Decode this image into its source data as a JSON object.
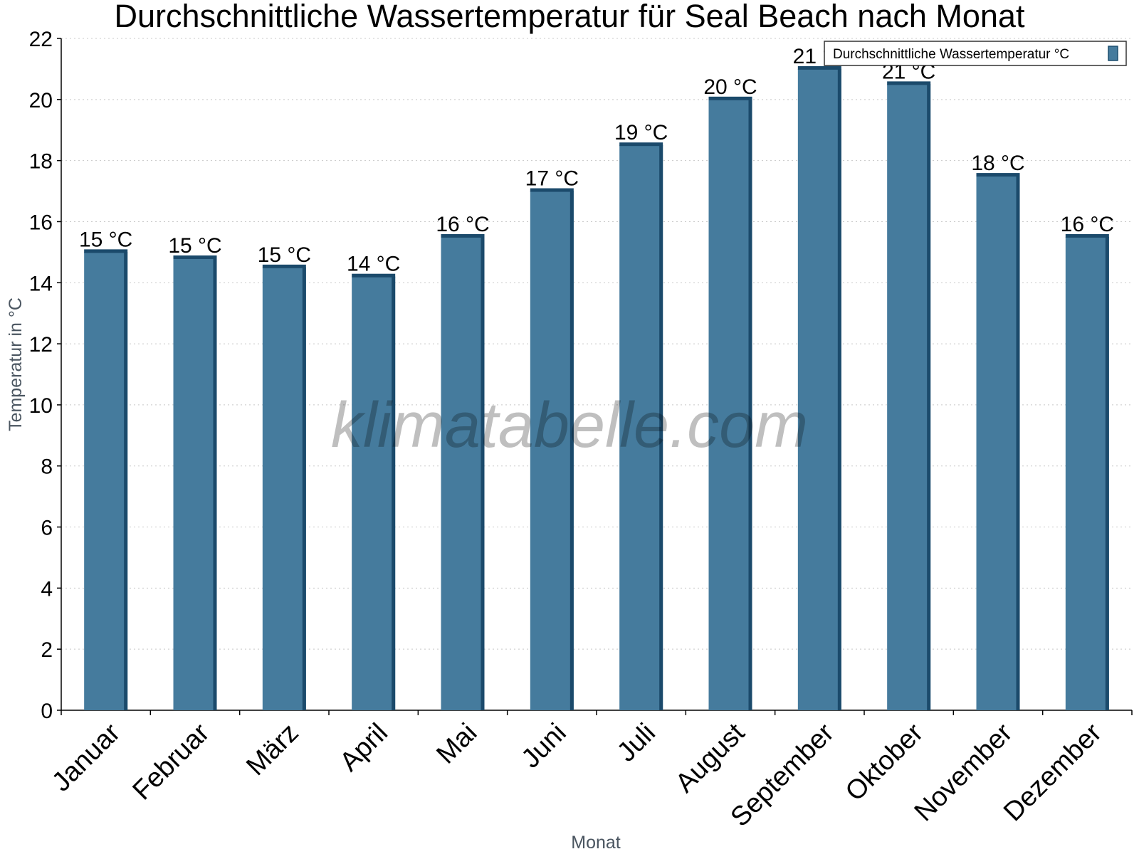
{
  "chart_data": {
    "type": "bar",
    "title": "Durchschnittliche Wassertemperatur für Seal Beach nach Monat",
    "xlabel": "Monat",
    "ylabel": "Temperatur in °C",
    "ylim": [
      0,
      22
    ],
    "yticks": [
      0,
      2,
      4,
      6,
      8,
      10,
      12,
      14,
      16,
      18,
      20,
      22
    ],
    "grid": true,
    "legend_position": "top-right",
    "categories": [
      "Januar",
      "Februar",
      "März",
      "April",
      "Mai",
      "Juni",
      "Juli",
      "August",
      "September",
      "Oktober",
      "November",
      "Dezember"
    ],
    "series": [
      {
        "name": "Durchschnittliche Wassertemperatur °C",
        "color": "#457b9d",
        "values": [
          15.0,
          14.8,
          14.5,
          14.2,
          15.5,
          17.0,
          18.5,
          20.0,
          21.0,
          20.5,
          17.5,
          15.5
        ],
        "labels": [
          "15 °C",
          "15 °C",
          "15 °C",
          "14 °C",
          "16 °C",
          "17 °C",
          "19 °C",
          "20 °C",
          "21 °C",
          "21 °C",
          "18 °C",
          "16 °C"
        ]
      }
    ],
    "watermark": "klimatabelle.com"
  }
}
